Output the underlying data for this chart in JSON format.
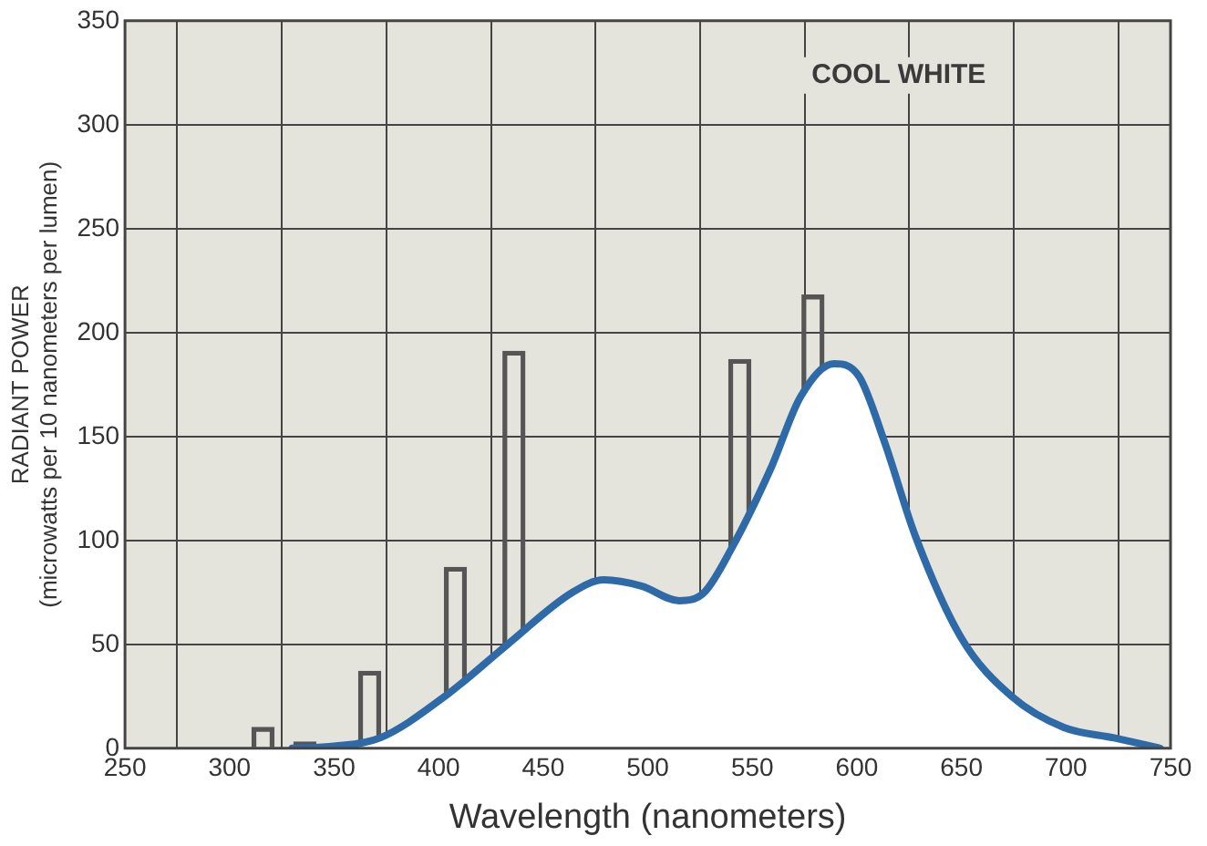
{
  "chart_data": {
    "type": "area",
    "xlabel": "Wavelength (nanometers)",
    "ylabel": "RADIANT POWER\n(microwatts per 10 nanometers per lumen)",
    "annotations": [
      "COOL WHITE"
    ],
    "xlim": [
      250,
      750
    ],
    "xticks": [
      250,
      300,
      350,
      400,
      450,
      500,
      550,
      600,
      650,
      700,
      750
    ],
    "ylim": [
      0,
      350
    ],
    "yticks": [
      0,
      50,
      100,
      150,
      200,
      250,
      300,
      350
    ],
    "grid": true,
    "legend": false,
    "marker": "none",
    "series": [
      {
        "type": "bar",
        "color": "#555555",
        "x": [
          316,
          336,
          367,
          408,
          436,
          544,
          579
        ],
        "values": [
          10,
          3,
          37,
          87,
          191,
          187,
          218
        ]
      },
      {
        "color": "#2f6aa8",
        "x": [
          330,
          350,
          372,
          403,
          433,
          464,
          479,
          497,
          515,
          527,
          540,
          559,
          573,
          589,
          601,
          613,
          628,
          650,
          674,
          699,
          723,
          745
        ],
        "values": [
          0,
          1,
          5,
          25,
          50,
          75,
          81,
          78,
          71,
          75,
          96,
          135,
          169,
          185,
          179,
          148,
          102,
          53,
          25,
          10,
          5,
          0
        ]
      }
    ]
  }
}
